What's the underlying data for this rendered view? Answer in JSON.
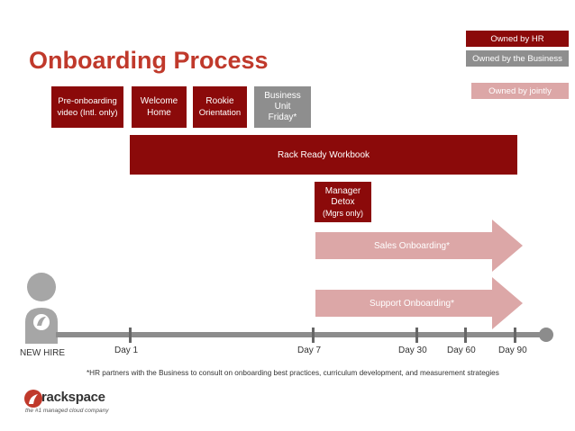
{
  "title": "Onboarding Process",
  "legend": {
    "hr": "Owned by HR",
    "business": "Owned by the Business",
    "jointly": "Owned by jointly"
  },
  "colors": {
    "hr": "#8b0a0a",
    "business": "#8e8e8e",
    "jointly": "#dca7a7",
    "title": "#c0392b",
    "timeline": "#8c8c8c"
  },
  "boxes": {
    "preonboarding": [
      "Pre-onboarding",
      "video (Intl. only)"
    ],
    "welcome": [
      "Welcome",
      "Home"
    ],
    "rookie": [
      "Rookie",
      "Orientation"
    ],
    "business_unit": [
      "Business",
      "Unit",
      "Friday*"
    ],
    "rack_ready": "Rack Ready Workbook",
    "manager_detox": [
      "Manager",
      "Detox",
      "(Mgrs only)"
    ]
  },
  "arrows": {
    "sales": "Sales Onboarding*",
    "support": "Support Onboarding*"
  },
  "timeline": {
    "start": "NEW HIRE",
    "days": [
      "Day 1",
      "Day 7",
      "Day 30",
      "Day 60",
      "Day 90"
    ]
  },
  "footnote": "*HR partners with the Business to consult on onboarding best practices, curriculum development, and measurement strategies",
  "logo": {
    "name": "rackspace",
    "tagline": "the #1 managed cloud company"
  }
}
